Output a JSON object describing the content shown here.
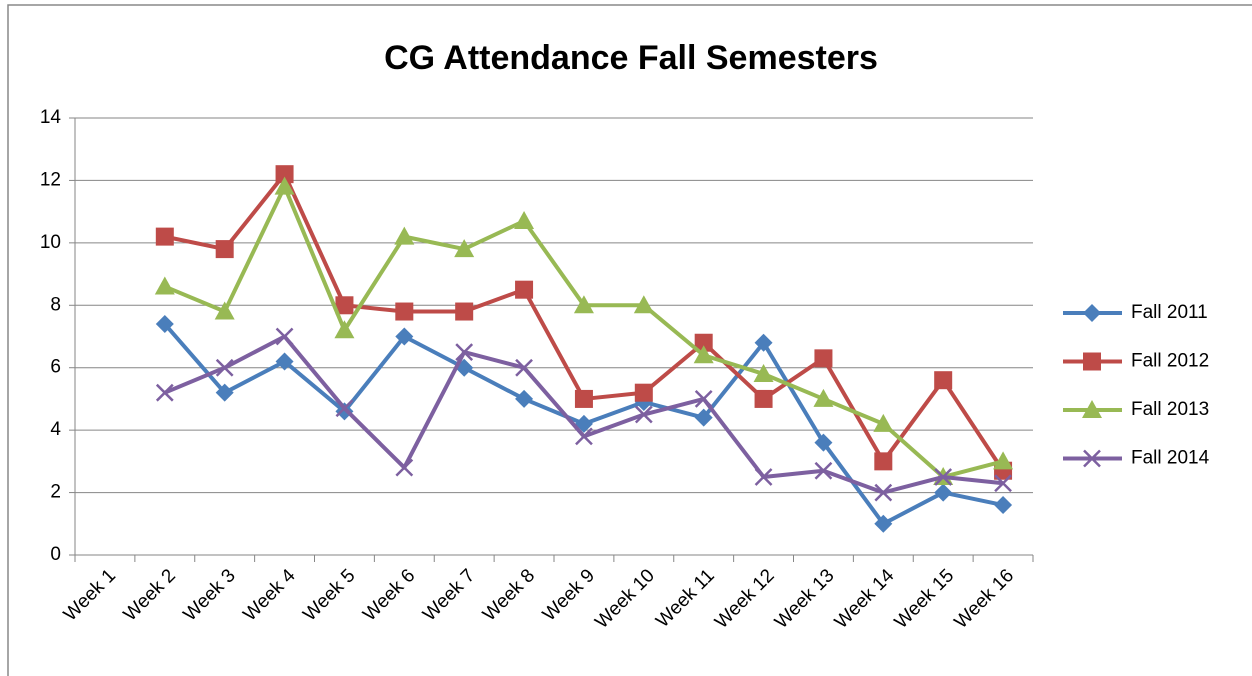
{
  "chart_data": {
    "type": "line",
    "title": "CG Attendance Fall Semesters",
    "categories": [
      "Week 1",
      "Week 2",
      "Week 3",
      "Week 4",
      "Week 5",
      "Week 6",
      "Week 7",
      "Week 8",
      "Week 9",
      "Week 10",
      "Week 11",
      "Week 12",
      "Week 13",
      "Week 14",
      "Week 15",
      "Week 16"
    ],
    "series": [
      {
        "name": "Fall 2011",
        "color": "#4a7ebb",
        "marker": "diamond",
        "values": [
          null,
          7.4,
          5.2,
          6.2,
          4.6,
          7.0,
          6.0,
          5.0,
          4.2,
          4.9,
          4.4,
          6.8,
          3.6,
          1.0,
          2.0,
          1.6
        ]
      },
      {
        "name": "Fall 2012",
        "color": "#be4b48",
        "marker": "square",
        "values": [
          null,
          10.2,
          9.8,
          12.2,
          8.0,
          7.8,
          7.8,
          8.5,
          5.0,
          5.2,
          6.8,
          5.0,
          6.3,
          3.0,
          5.6,
          2.7
        ]
      },
      {
        "name": "Fall 2013",
        "color": "#98b954",
        "marker": "triangle",
        "values": [
          null,
          8.6,
          7.8,
          11.8,
          7.2,
          10.2,
          9.8,
          10.7,
          8.0,
          8.0,
          6.4,
          5.8,
          5.0,
          4.2,
          2.5,
          3.0
        ]
      },
      {
        "name": "Fall 2014",
        "color": "#7d60a0",
        "marker": "x",
        "values": [
          null,
          5.2,
          6.0,
          7.0,
          4.7,
          2.8,
          6.5,
          6.0,
          3.8,
          4.5,
          5.0,
          2.5,
          2.7,
          2.0,
          2.5,
          2.3
        ]
      }
    ],
    "ylim": [
      0,
      14
    ],
    "yticks": [
      0,
      2,
      4,
      6,
      8,
      10,
      12,
      14
    ],
    "grid": true,
    "legend": "right"
  }
}
